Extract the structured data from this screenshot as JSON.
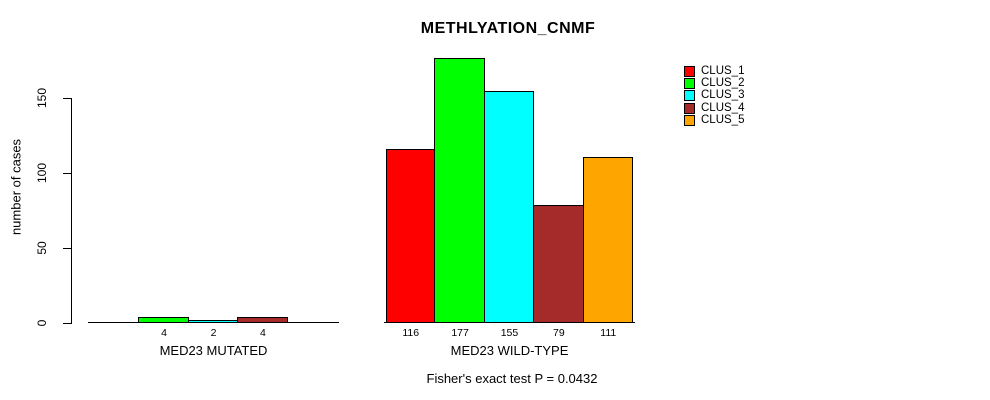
{
  "chart_data": {
    "type": "bar",
    "title": "METHLYATION_CNMF",
    "ylabel": "number of cases",
    "yticks": [
      0,
      50,
      100,
      150
    ],
    "grid": false,
    "legend_position": "top-right",
    "series": [
      {
        "name": "CLUS_1",
        "color": "#FF0000"
      },
      {
        "name": "CLUS_2",
        "color": "#00FF00"
      },
      {
        "name": "CLUS_3",
        "color": "#00FFFF"
      },
      {
        "name": "CLUS_4",
        "color": "#A52A2A"
      },
      {
        "name": "CLUS_5",
        "color": "#FFA500"
      }
    ],
    "groups": [
      {
        "label": "MED23 MUTATED",
        "values": [
          0,
          4,
          2,
          4,
          0
        ],
        "value_labels": [
          "",
          "4",
          "2",
          "4",
          ""
        ]
      },
      {
        "label": "MED23 WILD-TYPE",
        "values": [
          116,
          177,
          155,
          79,
          111
        ],
        "value_labels": [
          "116",
          "177",
          "155",
          "79",
          "111"
        ]
      }
    ],
    "footnote": "Fisher's exact test P = 0.0432"
  }
}
